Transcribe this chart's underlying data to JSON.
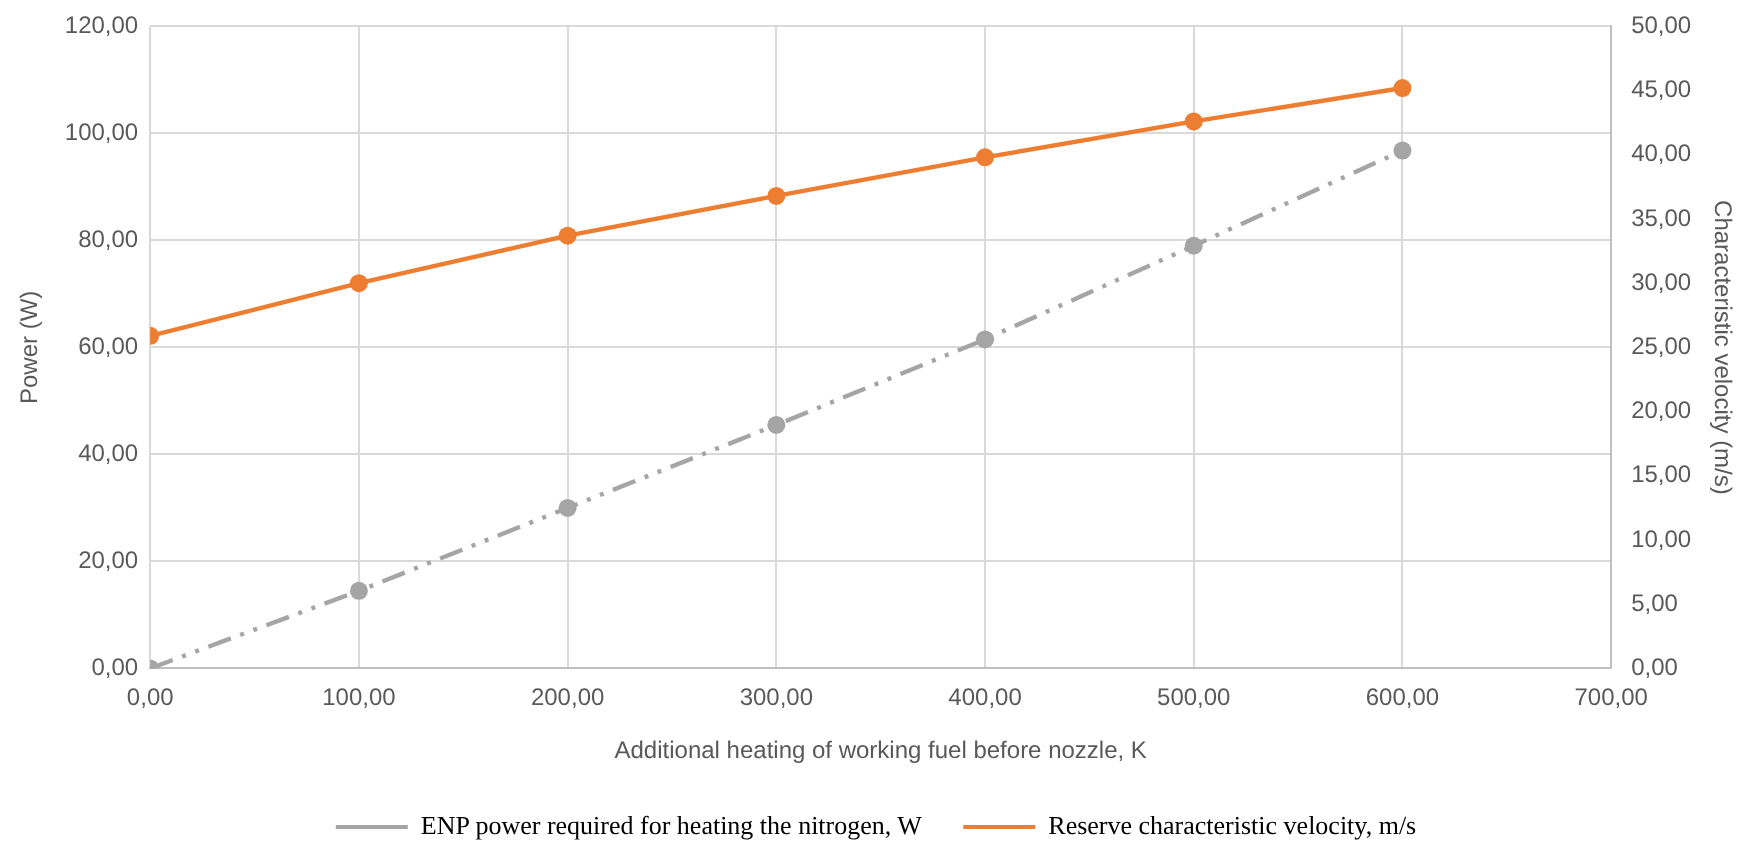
{
  "chart_data": {
    "type": "line",
    "xlabel": "Additional heating of working fuel before nozzle, K",
    "ylabel": "Power (W)",
    "y2label": "Characteristic velocity (m/s)",
    "x": [
      0,
      100,
      200,
      300,
      400,
      500,
      600
    ],
    "series": [
      {
        "name": "ENP power required for heating the nitrogen, W",
        "color": "#a5a5a5",
        "values": [
          0,
          14.5,
          30.0,
          45.5,
          61.5,
          79.0,
          96.8
        ],
        "line_style": "dashed"
      },
      {
        "name": "Reserve characteristic velocity, m/s",
        "color": "#ed7d31",
        "values": [
          25.9,
          30.0,
          33.7,
          36.8,
          39.8,
          42.6,
          45.2
        ],
        "axis": "y2",
        "line_style": "solid"
      }
    ],
    "xlim": [
      0,
      700
    ],
    "xticks": [
      {
        "value": 0,
        "label": "0,00"
      },
      {
        "value": 100,
        "label": "100,00"
      },
      {
        "value": 200,
        "label": "200,00"
      },
      {
        "value": 300,
        "label": "300,00"
      },
      {
        "value": 400,
        "label": "400,00"
      },
      {
        "value": 500,
        "label": "500,00"
      },
      {
        "value": 600,
        "label": "600,00"
      },
      {
        "value": 700,
        "label": "700,00"
      }
    ],
    "ylim": [
      0,
      120
    ],
    "yticks": [
      {
        "value": 0,
        "label": "0,00"
      },
      {
        "value": 20,
        "label": "20,00"
      },
      {
        "value": 40,
        "label": "40,00"
      },
      {
        "value": 60,
        "label": "60,00"
      },
      {
        "value": 80,
        "label": "80,00"
      },
      {
        "value": 100,
        "label": "100,00"
      },
      {
        "value": 120,
        "label": "120,00"
      }
    ],
    "y2lim": [
      0,
      50
    ],
    "y2ticks": [
      {
        "value": 0,
        "label": "0,00"
      },
      {
        "value": 5,
        "label": "5,00"
      },
      {
        "value": 10,
        "label": "10,00"
      },
      {
        "value": 15,
        "label": "15,00"
      },
      {
        "value": 20,
        "label": "20,00"
      },
      {
        "value": 25,
        "label": "25,00"
      },
      {
        "value": 30,
        "label": "30,00"
      },
      {
        "value": 35,
        "label": "35,00"
      },
      {
        "value": 40,
        "label": "40,00"
      },
      {
        "value": 45,
        "label": "45,00"
      },
      {
        "value": 50,
        "label": "50,00"
      }
    ],
    "grid": true,
    "legend": "bottom",
    "marker": "circle"
  }
}
